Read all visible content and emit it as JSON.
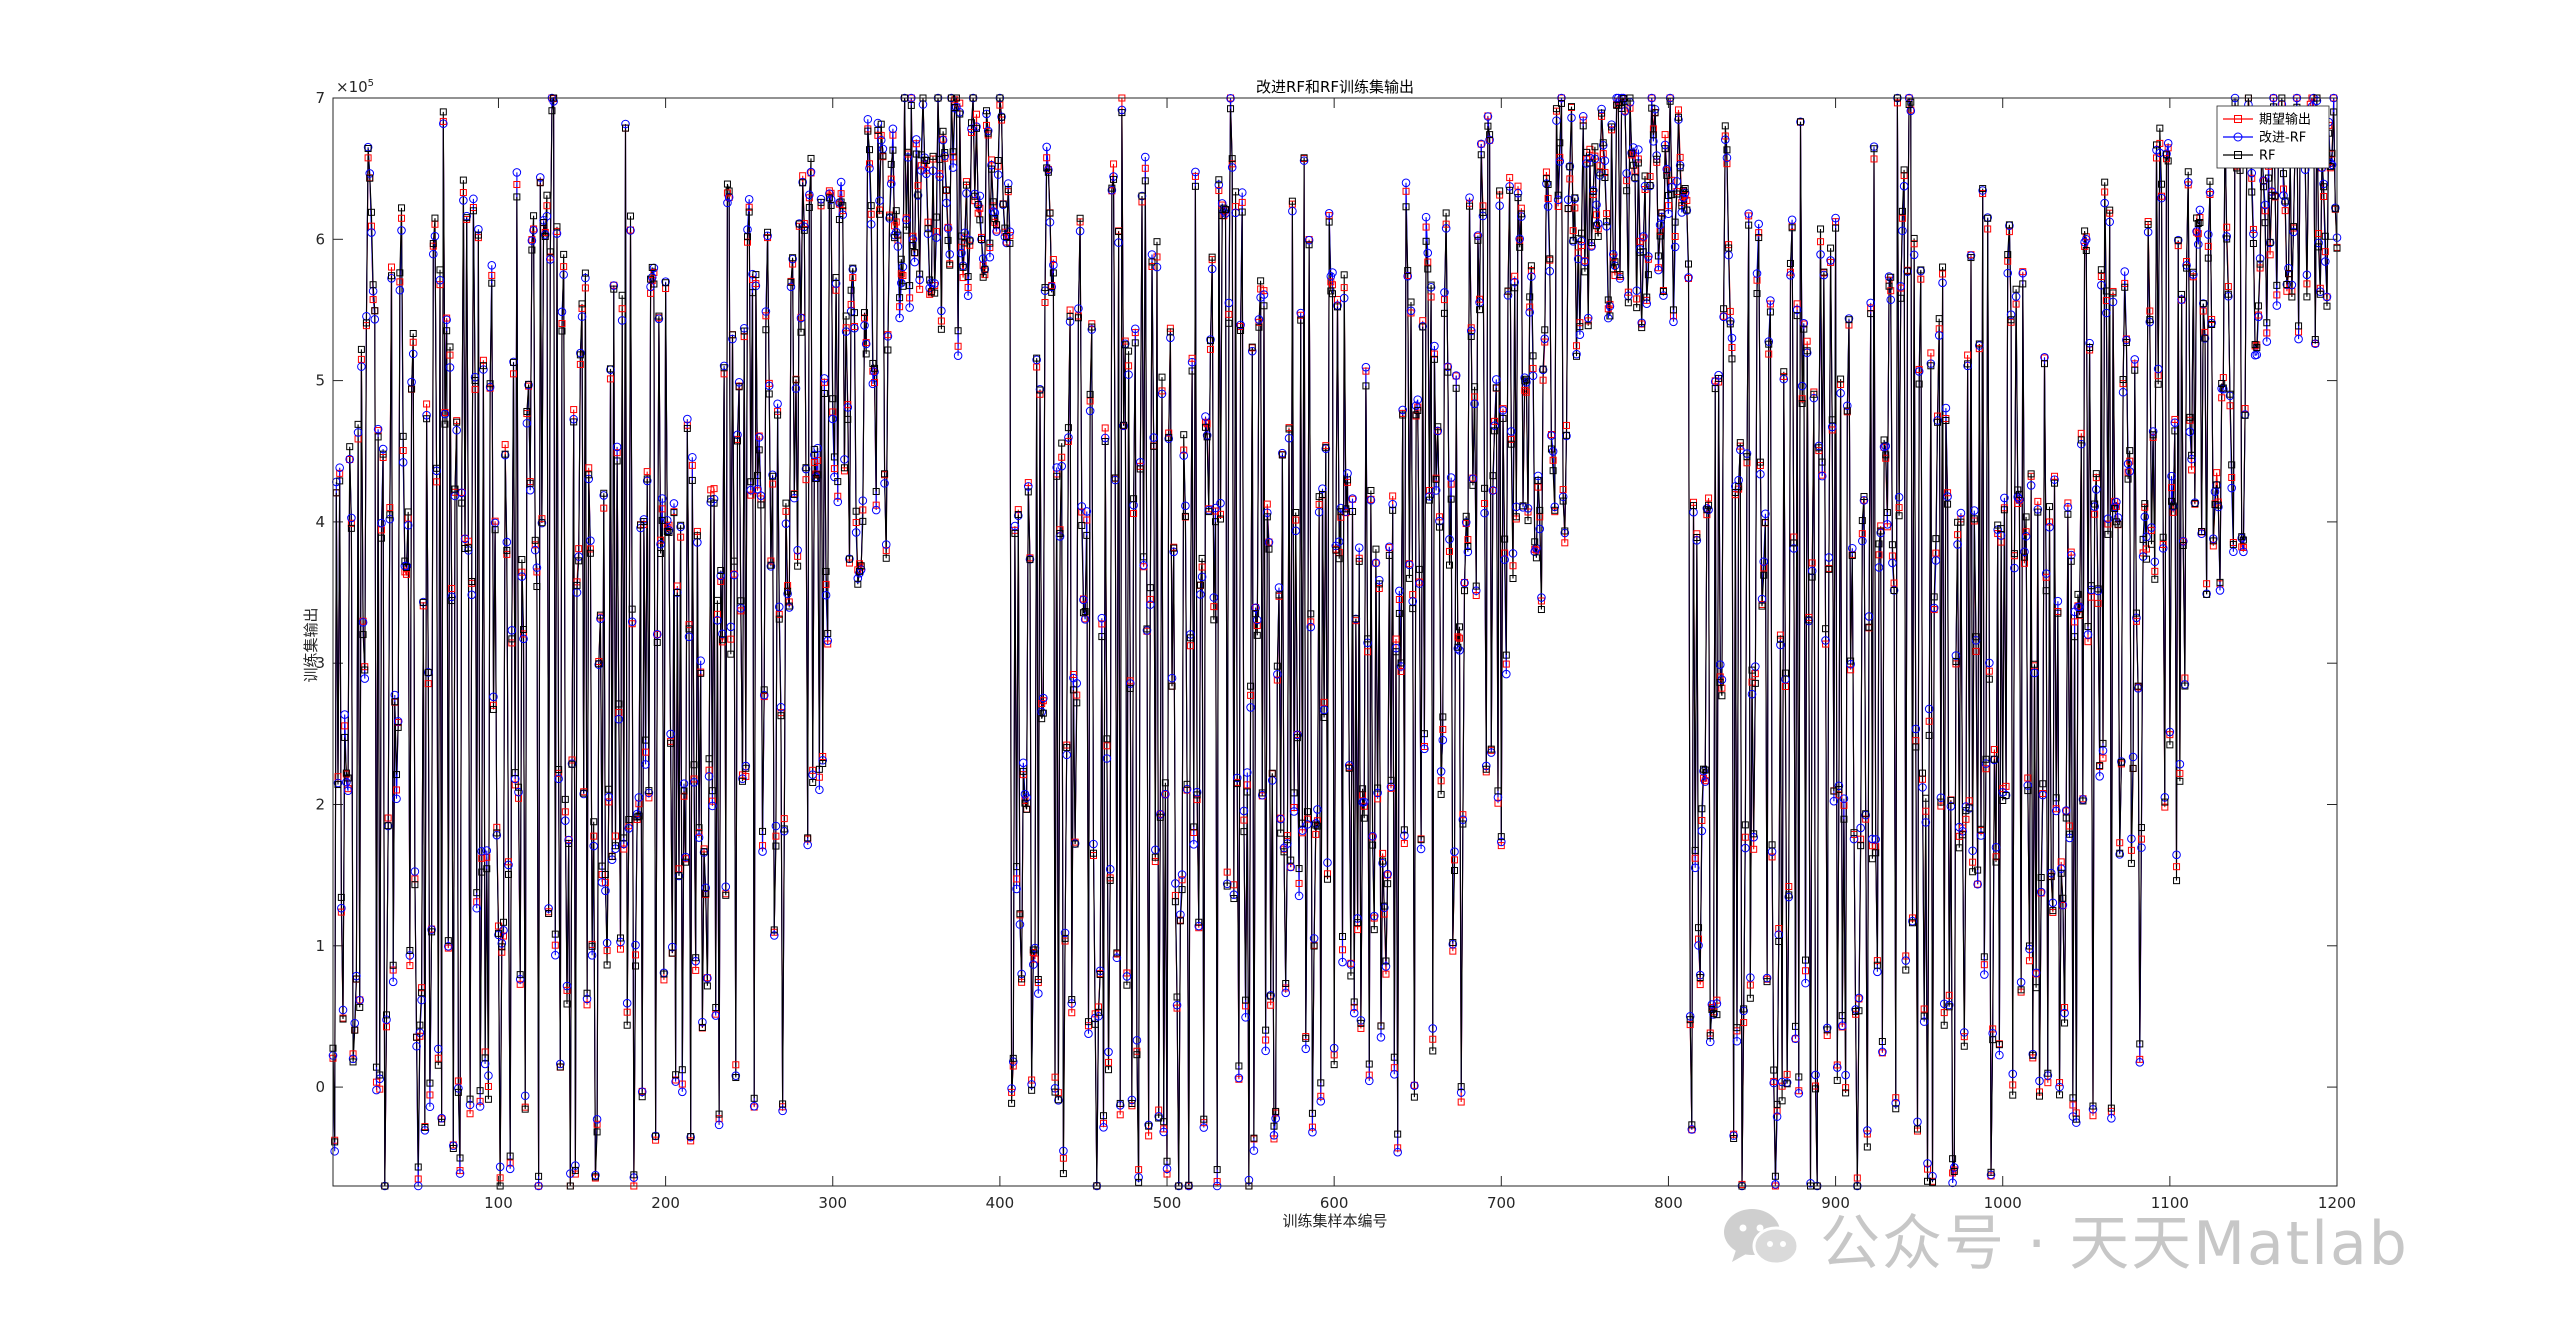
{
  "chart_data": {
    "type": "line",
    "title": "改进RF和RF训练集输出",
    "xlabel": "训练集样本编号",
    "ylabel": "训练集输出",
    "exponent_label": "×10^5",
    "xlim": [
      1,
      1200
    ],
    "ylim": [
      -70000,
      700000
    ],
    "xticks": [
      100,
      200,
      300,
      400,
      500,
      600,
      700,
      800,
      900,
      1000,
      1100,
      1200
    ],
    "yticks": [
      0,
      100000,
      200000,
      300000,
      400000,
      500000,
      600000,
      700000
    ],
    "ytick_labels": [
      "0",
      "1",
      "2",
      "3",
      "4",
      "5",
      "6",
      "7"
    ],
    "legend_position": "top-right",
    "n_samples": 1200,
    "series": [
      {
        "name": "期望输出",
        "color": "#ff0000",
        "marker": "square"
      },
      {
        "name": "改进-RF",
        "color": "#0000ff",
        "marker": "circle"
      },
      {
        "name": "RF",
        "color": "#000000",
        "marker": "square"
      }
    ],
    "approx_values": [
      8000,
      -22000,
      410000,
      180000,
      420000,
      110000,
      75000,
      225000,
      205000,
      185000,
      425000,
      412000,
      0,
      65000,
      70000,
      480000,
      85000,
      492000,
      300000,
      270000,
      570000,
      660000,
      625000,
      620000,
      575000,
      560000,
      -30000,
      435000,
      5000,
      400000,
      420000,
      -55000,
      70000,
      205000,
      420000,
      580000,
      45000,
      275000,
      190000,
      280000,
      575000,
      585000,
      425000,
      380000,
      360000,
      375000,
      70000,
      525000,
      520000,
      180000,
      20000,
      -57000,
      20000,
      90000,
      350000,
      -20000,
      490000,
      250000,
      0,
      150000,
      615000,
      640000,
      415000,
      60000,
      585000,
      -5000,
      690000,
      500000,
      520000,
      100000,
      515000,
      325000,
      -50000,
      405000,
      510000,
      0,
      -55000,
      420000,
      620000,
      405000,
      615000,
      350000,
      5000,
      355000,
      590000,
      485000,
      170000,
      590000,
      -22000,
      170000,
      490000,
      10000,
      180000,
      -23000,
      455000,
      575000,
      295000,
      395000,
      170000,
      85000,
      -70000,
      80000,
      140000,
      420000,
      410000,
      180000,
      -50000,
      290000,
      520000,
      185000,
      660000,
      180000,
      80000,
      370000,
      360000,
      0,
      460000,
      470000,
      405000,
      560000,
      600000,
      355000,
      380000,
      -45000,
      660000,
      400000,
      600000,
      590000,
      610000,
      125000,
      575000,
      690000,
      685000,
      130000,
      600000,
      245000,
      0,
      545000,
      595000,
      180000,
      80000,
      185000,
      -60000,
      245000,
      510000,
      -65000,
      320000,
      365000,
      510000,
      525000,
      185000,
      580000,
      60000,
      440000,
      410000,
      70000,
      190000,
      -25000,
      -35000,
      310000,
      365000,
      180000,
      440000,
      175000,
      75000,
      185000,
      485000,
      175000,
      590000,
      180000,
      415000,
      280000,
      130000,
      520000,
      180000,
      640000,
      75000,
      205000,
      600000,
      290000,
      -60000,
      75000,
      205000,
      175000,
      415000,
      -5000,
      380000,
      235000,
      420000,
      190000,
      580000,
      600000,
      555000,
      0,
      350000,
      545000,
      390000,
      420000,
      60000,
      555000,
      390000,
      410000,
      250000,
      100000,
      400000,
      20000,
      320000,
      120000,
      380000,
      10000,
      175000,
      180000,
      505000,
      335000,
      -30000,
      405000,
      180000,
      120000,
      400000,
      190000,
      320000,
      10000,
      185000,
      100000,
      60000,
      185000,
      400000,
      205000,
      410000,
      20000,
      350000,
      -45000,
      350000,
      305000,
      500000,
      170000,
      600000,
      610000,
      355000,
      520000,
      380000,
      -10000,
      440000,
      460000,
      335000,
      190000,
      555000,
      250000,
      620000,
      590000,
      395000,
      590000,
      0,
      540000,
      400000,
      445000,
      400000,
      195000,
      250000,
      520000,
      580000,
      520000,
      400000,
      460000,
      130000,
      190000,
      480000,
      335000,
      300000,
      0,
      180000,
      375000,
      380000,
      380000,
      590000,
      560000,
      420000,
      490000,
      370000,
      640000,
      520000,
      650000,
      600000,
      420000,
      190000,
      660000,
      640000,
      220000,
      420000,
      440000,
      480000,
      180000,
      600000,
      210000,
      520000,
      380000,
      300000,
      600000,
      640000,
      480000,
      400000,
      550000,
      420000,
      610000,
      630000,
      620000,
      420000,
      520000,
      500000,
      390000,
      590000,
      600000,
      510000,
      400000,
      380000,
      410000,
      400000,
      370000,
      520000,
      520000,
      640000,
      630000,
      600000,
      480000,
      460000,
      400000,
      660000,
      650000,
      650000,
      670000,
      420000,
      380000,
      500000,
      620000,
      680000,
      660000,
      640000,
      640000,
      560000,
      560000,
      580000,
      610000,
      670000,
      620000,
      650000,
      520000,
      690000,
      580000,
      600000,
      690000,
      620000,
      600000,
      690000,
      680000,
      660000,
      620000,
      600000,
      580000,
      590000,
      690000,
      560000,
      600000,
      690000,
      680000,
      560000,
      690000,
      690000,
      660000,
      640000,
      600000,
      690000,
      690000,
      700000,
      680000,
      560000,
      680000,
      580000,
      580000,
      640000,
      670000,
      590000,
      580000,
      650000,
      690000,
      650000,
      690000,
      640000,
      600000,
      640000,
      600000,
      590000,
      690000,
      680000,
      600000,
      690000,
      660000,
      580000,
      640000,
      650000,
      660000,
      660000,
      650000,
      640000,
      620000,
      600000,
      580000
    ]
  }
}
